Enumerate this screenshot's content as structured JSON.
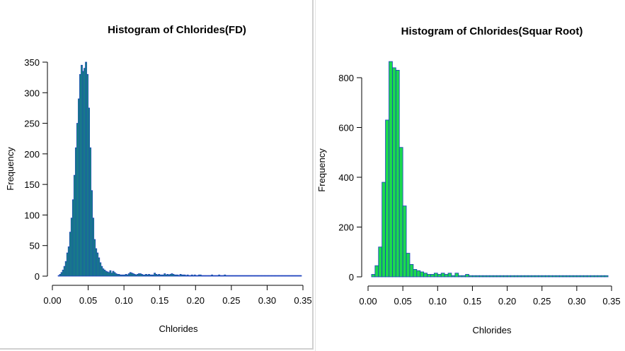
{
  "chart_data": [
    {
      "type": "bar",
      "title": "Histogram of Chlorides(FD)",
      "xlabel": "Chlorides",
      "ylabel": "Frequency",
      "xlim": [
        0.0,
        0.35
      ],
      "ylim": [
        0,
        350
      ],
      "xticks": [
        "0.00",
        "0.05",
        "0.10",
        "0.15",
        "0.20",
        "0.25",
        "0.30",
        "0.35"
      ],
      "yticks": [
        "0",
        "50",
        "100",
        "150",
        "200",
        "250",
        "300",
        "350"
      ],
      "bin_width": 0.002,
      "bins_start": 0.008,
      "values": [
        1,
        3,
        6,
        10,
        16,
        24,
        38,
        48,
        72,
        95,
        125,
        165,
        210,
        250,
        290,
        330,
        345,
        335,
        340,
        350,
        330,
        275,
        210,
        140,
        95,
        60,
        45,
        38,
        30,
        22,
        16,
        12,
        10,
        8,
        7,
        6,
        9,
        5,
        8,
        6,
        4,
        3,
        3,
        2,
        2,
        2,
        2,
        3,
        2,
        4,
        6,
        5,
        4,
        3,
        2,
        3,
        4,
        4,
        3,
        2,
        2,
        3,
        2,
        3,
        2,
        2,
        2,
        5,
        3,
        2,
        3,
        2,
        2,
        2,
        4,
        2,
        3,
        2,
        3,
        4,
        3,
        2,
        2,
        2,
        1,
        3,
        2,
        2,
        2,
        1,
        2,
        1,
        1,
        2,
        1,
        2,
        1,
        1,
        2,
        2,
        1,
        1,
        1,
        1,
        1,
        1,
        1,
        2,
        1,
        1,
        1,
        1,
        2,
        1,
        1,
        1,
        2,
        1,
        1,
        1,
        1,
        1,
        1,
        1,
        1,
        1,
        1,
        1,
        1,
        1,
        1,
        1,
        1,
        1,
        1,
        1,
        1,
        1,
        1,
        1,
        1,
        1,
        1,
        1,
        1,
        1,
        1,
        1,
        1,
        1,
        1,
        1,
        1,
        1,
        1,
        1,
        1,
        1,
        1,
        1,
        1,
        1,
        1,
        1,
        1,
        1,
        1,
        1,
        1,
        1
      ],
      "colors": {
        "fill": "#179a6e",
        "border": "#1b3dbf"
      }
    },
    {
      "type": "bar",
      "title": "Histogram of Chlorides(Squar Root)",
      "xlabel": "Chlorides",
      "ylabel": "Frequency",
      "xlim": [
        0.0,
        0.35
      ],
      "ylim": [
        0,
        870
      ],
      "xticks": [
        "0.00",
        "0.05",
        "0.10",
        "0.15",
        "0.20",
        "0.25",
        "0.30",
        "0.35"
      ],
      "yticks": [
        "0",
        "200",
        "400",
        "600",
        "800"
      ],
      "bin_width": 0.005,
      "bins_start": 0.005,
      "values": [
        10,
        45,
        120,
        380,
        630,
        865,
        840,
        830,
        520,
        285,
        95,
        50,
        30,
        25,
        20,
        15,
        10,
        10,
        15,
        10,
        15,
        10,
        15,
        5,
        15,
        5,
        5,
        10,
        5,
        5,
        5,
        5,
        5,
        5,
        5,
        5,
        5,
        5,
        5,
        5,
        5,
        5,
        5,
        5,
        5,
        5,
        5,
        5,
        5,
        5,
        5,
        5,
        5,
        5,
        5,
        5,
        5,
        5,
        5,
        5,
        5,
        5,
        5,
        5,
        5,
        5,
        5,
        5
      ],
      "colors": {
        "fill": "#1bd94e",
        "border": "#1b3dbf"
      }
    }
  ]
}
